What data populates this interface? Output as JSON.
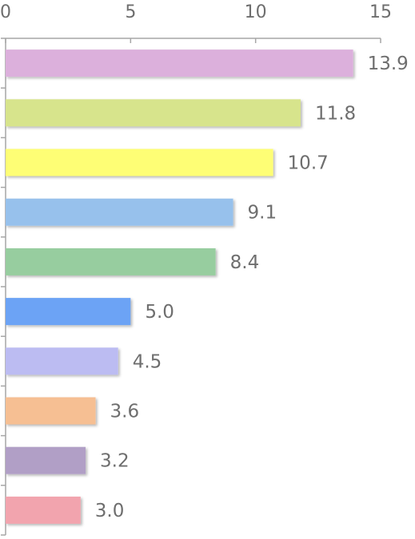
{
  "chart_data": {
    "type": "bar",
    "orientation": "horizontal",
    "title": "",
    "xlabel": "",
    "ylabel": "",
    "xlim": [
      0,
      15
    ],
    "x_ticks": [
      0,
      5,
      10,
      15
    ],
    "x_tick_labels": [
      "0",
      "5",
      "10",
      "15"
    ],
    "x_axis_position": "top",
    "grid": false,
    "legend": "none",
    "values": [
      13.9,
      11.8,
      10.7,
      9.1,
      8.4,
      5.0,
      4.5,
      3.6,
      3.2,
      3.0
    ],
    "data_labels": [
      "13.9",
      "11.8",
      "10.7",
      "9.1",
      "8.4",
      "5.0",
      "4.5",
      "3.6",
      "3.2",
      "3.0"
    ],
    "colors": [
      "#dcb0dc",
      "#d7e48c",
      "#fefe74",
      "#97c1ec",
      "#97cd9f",
      "#6ca3f5",
      "#bcbcf2",
      "#f6bf93",
      "#b19fc6",
      "#f2a4ae"
    ]
  }
}
